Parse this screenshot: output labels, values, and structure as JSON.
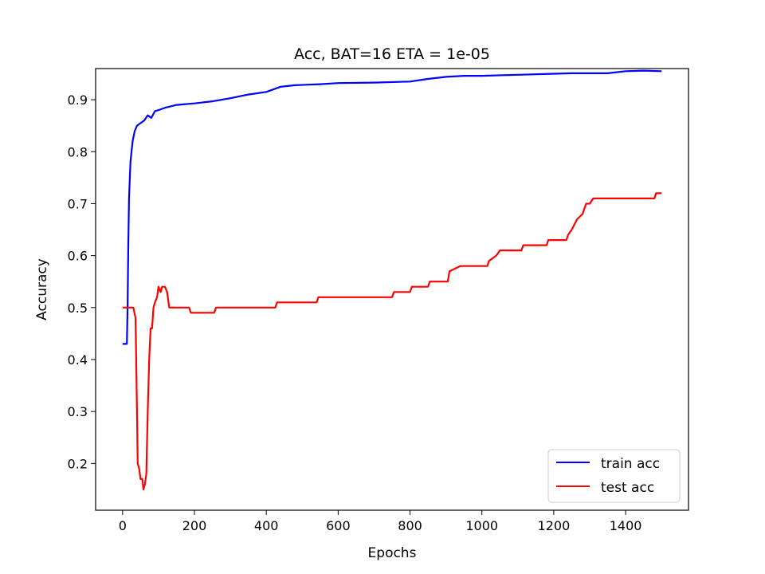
{
  "chart_data": {
    "type": "line",
    "title": "Acc, BAT=16 ETA = 1e-05",
    "xlabel": "Epochs",
    "ylabel": "Accuracy",
    "xlim": [
      -75,
      1575
    ],
    "ylim": [
      0.11,
      0.96
    ],
    "xticks": [
      0,
      200,
      400,
      600,
      800,
      1000,
      1200,
      1400
    ],
    "yticks": [
      0.2,
      0.3,
      0.4,
      0.5,
      0.6,
      0.7,
      0.8,
      0.9
    ],
    "xtick_labels": [
      "0",
      "200",
      "400",
      "600",
      "800",
      "1000",
      "1200",
      "1400"
    ],
    "ytick_labels": [
      "0.2",
      "0.3",
      "0.4",
      "0.5",
      "0.6",
      "0.7",
      "0.8",
      "0.9"
    ],
    "grid": false,
    "legend_position": "lower-right",
    "series": [
      {
        "name": "train acc",
        "color": "#0000ff",
        "points": [
          [
            0,
            0.43
          ],
          [
            12,
            0.43
          ],
          [
            14,
            0.5
          ],
          [
            16,
            0.62
          ],
          [
            18,
            0.71
          ],
          [
            22,
            0.78
          ],
          [
            28,
            0.82
          ],
          [
            34,
            0.84
          ],
          [
            40,
            0.85
          ],
          [
            50,
            0.855
          ],
          [
            60,
            0.86
          ],
          [
            70,
            0.87
          ],
          [
            80,
            0.865
          ],
          [
            90,
            0.878
          ],
          [
            100,
            0.88
          ],
          [
            120,
            0.885
          ],
          [
            150,
            0.89
          ],
          [
            200,
            0.893
          ],
          [
            250,
            0.897
          ],
          [
            300,
            0.903
          ],
          [
            350,
            0.91
          ],
          [
            400,
            0.915
          ],
          [
            440,
            0.925
          ],
          [
            480,
            0.928
          ],
          [
            550,
            0.93
          ],
          [
            600,
            0.932
          ],
          [
            700,
            0.933
          ],
          [
            800,
            0.935
          ],
          [
            850,
            0.94
          ],
          [
            900,
            0.944
          ],
          [
            950,
            0.946
          ],
          [
            1000,
            0.946
          ],
          [
            1100,
            0.948
          ],
          [
            1200,
            0.95
          ],
          [
            1250,
            0.951
          ],
          [
            1300,
            0.951
          ],
          [
            1350,
            0.951
          ],
          [
            1400,
            0.955
          ],
          [
            1450,
            0.956
          ],
          [
            1500,
            0.955
          ]
        ]
      },
      {
        "name": "test acc",
        "color": "#ff0000",
        "points": [
          [
            0,
            0.5
          ],
          [
            30,
            0.5
          ],
          [
            36,
            0.48
          ],
          [
            40,
            0.3
          ],
          [
            42,
            0.2
          ],
          [
            46,
            0.19
          ],
          [
            50,
            0.17
          ],
          [
            55,
            0.17
          ],
          [
            58,
            0.15
          ],
          [
            62,
            0.16
          ],
          [
            66,
            0.18
          ],
          [
            70,
            0.3
          ],
          [
            74,
            0.4
          ],
          [
            78,
            0.46
          ],
          [
            82,
            0.46
          ],
          [
            86,
            0.5
          ],
          [
            90,
            0.51
          ],
          [
            96,
            0.52
          ],
          [
            100,
            0.54
          ],
          [
            106,
            0.53
          ],
          [
            110,
            0.54
          ],
          [
            118,
            0.54
          ],
          [
            124,
            0.53
          ],
          [
            130,
            0.5
          ],
          [
            185,
            0.5
          ],
          [
            190,
            0.49
          ],
          [
            255,
            0.49
          ],
          [
            260,
            0.5
          ],
          [
            425,
            0.5
          ],
          [
            430,
            0.51
          ],
          [
            540,
            0.51
          ],
          [
            545,
            0.52
          ],
          [
            750,
            0.52
          ],
          [
            755,
            0.53
          ],
          [
            800,
            0.53
          ],
          [
            805,
            0.54
          ],
          [
            850,
            0.54
          ],
          [
            855,
            0.55
          ],
          [
            905,
            0.55
          ],
          [
            910,
            0.57
          ],
          [
            940,
            0.58
          ],
          [
            1015,
            0.58
          ],
          [
            1020,
            0.59
          ],
          [
            1040,
            0.6
          ],
          [
            1050,
            0.61
          ],
          [
            1110,
            0.61
          ],
          [
            1115,
            0.62
          ],
          [
            1180,
            0.62
          ],
          [
            1185,
            0.63
          ],
          [
            1235,
            0.63
          ],
          [
            1240,
            0.64
          ],
          [
            1250,
            0.65
          ],
          [
            1265,
            0.67
          ],
          [
            1280,
            0.68
          ],
          [
            1290,
            0.7
          ],
          [
            1300,
            0.7
          ],
          [
            1310,
            0.71
          ],
          [
            1480,
            0.71
          ],
          [
            1485,
            0.72
          ],
          [
            1500,
            0.72
          ]
        ]
      }
    ]
  }
}
